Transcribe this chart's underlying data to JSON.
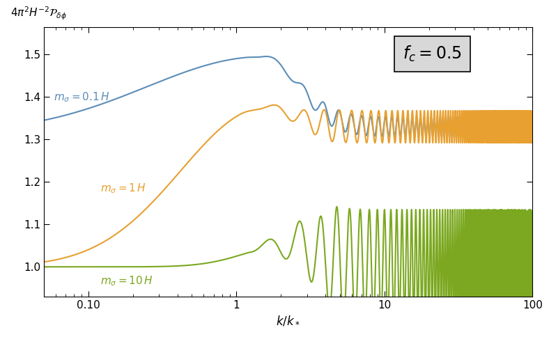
{
  "ylabel": "$4\\pi^2 H^{-2}\\mathcal{P}_{\\delta\\phi}$",
  "xlabel": "$k/k_*$",
  "annotation": "$f_c = 0.5$",
  "xlim": [
    0.05,
    100
  ],
  "ylim": [
    0.93,
    1.565
  ],
  "yticks": [
    1.0,
    1.1,
    1.2,
    1.3,
    1.4,
    1.5
  ],
  "color_blue": "#5B8DB8",
  "color_orange": "#E8A030",
  "color_green": "#7BA820",
  "label_blue": "$m_\\sigma = 0.1\\,H$",
  "label_orange": "$m_\\sigma = 1\\,H$",
  "label_green": "$m_\\sigma = 10\\,H$",
  "n_points": 8000,
  "blue_baseline": 1.315,
  "blue_peak_k": 1.5,
  "blue_peak_val": 1.495,
  "blue_asymp": 1.33,
  "blue_osc_amp": 0.023,
  "orange_baseline": 1.0,
  "orange_peak_k": 1.55,
  "orange_peak_val": 1.375,
  "orange_asymp": 1.33,
  "orange_osc_amp": 0.038,
  "green_baseline": 1.0,
  "green_peak_k": 2.4,
  "green_peak_val": 1.055,
  "green_asymp": 1.0,
  "green_osc_amp": 0.135,
  "osc_freq_linear": 6.0
}
